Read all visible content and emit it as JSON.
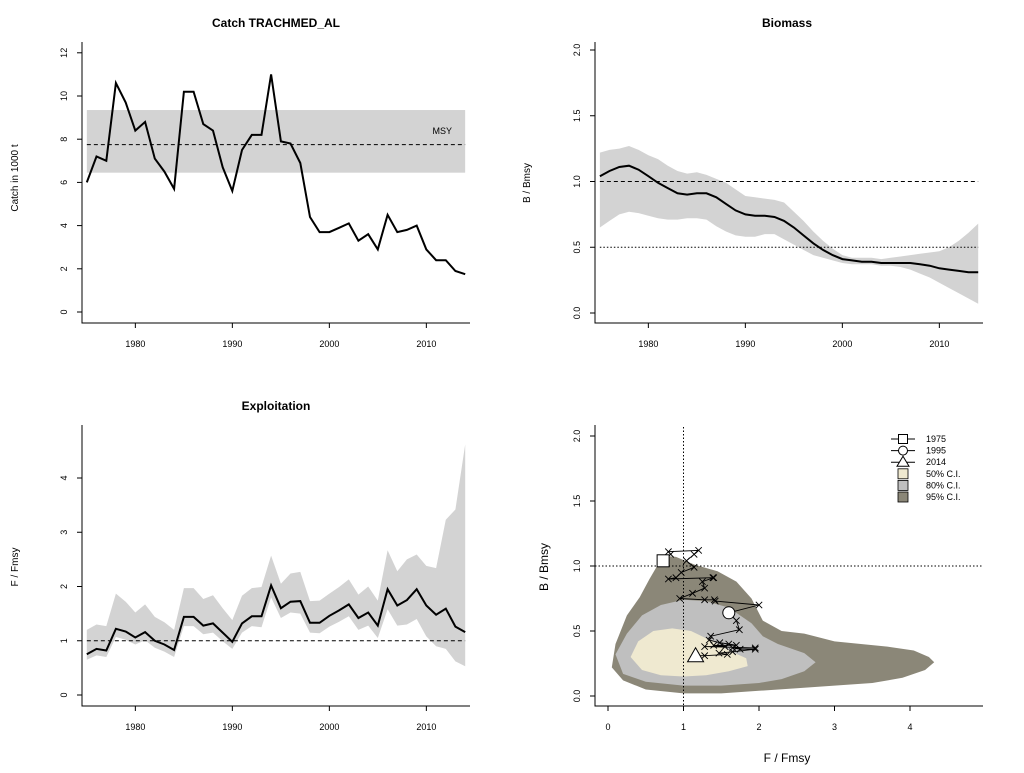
{
  "chart_data": [
    {
      "type": "line",
      "title": "Catch TRACHMED_AL",
      "xlabel": "",
      "ylabel": "Catch in 1000 t",
      "xlim": [
        1974.5,
        2014.5
      ],
      "ylim": [
        0,
        12
      ],
      "x_ticks": [
        1980,
        1990,
        2000,
        2010
      ],
      "y_ticks": [
        0,
        2,
        4,
        6,
        8,
        10,
        12
      ],
      "x": [
        1975,
        1976,
        1977,
        1978,
        1979,
        1980,
        1981,
        1982,
        1983,
        1984,
        1985,
        1986,
        1987,
        1988,
        1989,
        1990,
        1991,
        1992,
        1993,
        1994,
        1995,
        1996,
        1997,
        1998,
        1999,
        2000,
        2001,
        2002,
        2003,
        2004,
        2005,
        2006,
        2007,
        2008,
        2009,
        2010,
        2011,
        2012,
        2013,
        2014
      ],
      "values": [
        6.0,
        7.2,
        7.0,
        10.6,
        9.7,
        8.4,
        8.8,
        7.1,
        6.5,
        5.7,
        10.2,
        10.2,
        8.7,
        8.4,
        6.7,
        5.6,
        7.5,
        8.2,
        8.2,
        11.0,
        7.9,
        7.8,
        6.9,
        4.4,
        3.7,
        3.7,
        3.9,
        4.1,
        3.3,
        3.6,
        2.9,
        4.5,
        3.7,
        3.8,
        4.0,
        2.9,
        2.4,
        2.4,
        1.9,
        1.75
      ],
      "msy": 7.75,
      "msy_band": [
        6.45,
        9.35
      ],
      "annotation": "MSY"
    },
    {
      "type": "area",
      "title": "Biomass",
      "xlabel": "",
      "ylabel": "B / Bmsy",
      "xlim": [
        1974.5,
        2014.5
      ],
      "ylim": [
        0,
        2.0
      ],
      "x_ticks": [
        1980,
        1990,
        2000,
        2010
      ],
      "y_ticks": [
        0.0,
        0.5,
        1.0,
        1.5,
        2.0
      ],
      "x": [
        1975,
        1976,
        1977,
        1978,
        1979,
        1980,
        1981,
        1982,
        1983,
        1984,
        1985,
        1986,
        1987,
        1988,
        1989,
        1990,
        1991,
        1992,
        1993,
        1994,
        1995,
        1996,
        1997,
        1998,
        1999,
        2000,
        2001,
        2002,
        2003,
        2004,
        2005,
        2006,
        2007,
        2008,
        2009,
        2010,
        2011,
        2012,
        2013,
        2014
      ],
      "values": [
        1.04,
        1.08,
        1.11,
        1.12,
        1.09,
        1.04,
        0.99,
        0.95,
        0.91,
        0.9,
        0.91,
        0.91,
        0.88,
        0.83,
        0.78,
        0.75,
        0.74,
        0.74,
        0.73,
        0.7,
        0.65,
        0.59,
        0.53,
        0.48,
        0.44,
        0.41,
        0.4,
        0.39,
        0.39,
        0.38,
        0.38,
        0.38,
        0.38,
        0.37,
        0.36,
        0.34,
        0.33,
        0.32,
        0.31,
        0.31
      ],
      "lower": [
        0.65,
        0.7,
        0.75,
        0.77,
        0.76,
        0.74,
        0.72,
        0.71,
        0.71,
        0.72,
        0.72,
        0.71,
        0.66,
        0.62,
        0.59,
        0.58,
        0.58,
        0.6,
        0.6,
        0.56,
        0.52,
        0.48,
        0.44,
        0.42,
        0.4,
        0.38,
        0.37,
        0.37,
        0.37,
        0.36,
        0.36,
        0.35,
        0.33,
        0.3,
        0.27,
        0.23,
        0.19,
        0.15,
        0.11,
        0.07
      ],
      "upper": [
        1.22,
        1.24,
        1.25,
        1.27,
        1.24,
        1.2,
        1.17,
        1.12,
        1.08,
        1.06,
        1.07,
        1.05,
        1.02,
        0.99,
        0.94,
        0.89,
        0.88,
        0.87,
        0.86,
        0.84,
        0.77,
        0.7,
        0.62,
        0.55,
        0.49,
        0.44,
        0.42,
        0.42,
        0.42,
        0.41,
        0.42,
        0.43,
        0.44,
        0.45,
        0.46,
        0.47,
        0.5,
        0.55,
        0.61,
        0.68
      ],
      "ref_lines": [
        1.0,
        0.5
      ]
    },
    {
      "type": "area",
      "title": "Exploitation",
      "xlabel": "",
      "ylabel": "F / Fmsy",
      "xlim": [
        1974.5,
        2014.5
      ],
      "ylim": [
        0,
        4.8
      ],
      "x_ticks": [
        1980,
        1990,
        2000,
        2010
      ],
      "y_ticks": [
        0,
        1,
        2,
        3,
        4
      ],
      "x": [
        1975,
        1976,
        1977,
        1978,
        1979,
        1980,
        1981,
        1982,
        1983,
        1984,
        1985,
        1986,
        1987,
        1988,
        1989,
        1990,
        1991,
        1992,
        1993,
        1994,
        1995,
        1996,
        1997,
        1998,
        1999,
        2000,
        2001,
        2002,
        2003,
        2004,
        2005,
        2006,
        2007,
        2008,
        2009,
        2010,
        2011,
        2012,
        2013,
        2014
      ],
      "values": [
        0.75,
        0.85,
        0.82,
        1.22,
        1.17,
        1.06,
        1.16,
        1.0,
        0.93,
        0.83,
        1.44,
        1.44,
        1.28,
        1.32,
        1.15,
        0.98,
        1.32,
        1.45,
        1.45,
        2.02,
        1.6,
        1.72,
        1.73,
        1.33,
        1.33,
        1.46,
        1.56,
        1.67,
        1.42,
        1.52,
        1.28,
        1.95,
        1.65,
        1.75,
        1.95,
        1.65,
        1.48,
        1.59,
        1.26,
        1.16
      ],
      "lower": [
        0.65,
        0.73,
        0.7,
        1.07,
        1.02,
        0.93,
        1.01,
        0.87,
        0.8,
        0.7,
        1.27,
        1.27,
        1.12,
        1.15,
        0.99,
        0.85,
        1.15,
        1.27,
        1.25,
        1.8,
        1.42,
        1.52,
        1.5,
        1.15,
        1.14,
        1.26,
        1.35,
        1.45,
        1.2,
        1.28,
        1.05,
        1.58,
        1.28,
        1.3,
        1.4,
        1.08,
        0.9,
        0.85,
        0.62,
        0.53
      ],
      "upper": [
        1.2,
        1.3,
        1.27,
        1.87,
        1.72,
        1.52,
        1.67,
        1.44,
        1.34,
        1.2,
        1.97,
        1.97,
        1.77,
        1.84,
        1.6,
        1.38,
        1.83,
        1.97,
        1.99,
        2.57,
        2.05,
        2.24,
        2.27,
        1.73,
        1.74,
        1.87,
        1.99,
        2.13,
        1.85,
        2.0,
        1.74,
        2.67,
        2.28,
        2.5,
        2.59,
        2.38,
        2.34,
        3.23,
        3.42,
        4.62
      ],
      "ref_line": 1.0
    },
    {
      "type": "scatter",
      "title": "",
      "xlabel": "F / Fmsy",
      "ylabel": "B / Bmsy",
      "xlim": [
        -0.2,
        4.9
      ],
      "ylim": [
        -0.05,
        2.1
      ],
      "x_ticks": [
        0,
        1,
        2,
        3,
        4
      ],
      "y_ticks": [
        0.0,
        0.5,
        1.0,
        1.5,
        2.0
      ],
      "ref_x": 1.0,
      "ref_y": 1.0,
      "trajectory": [
        {
          "f": 0.73,
          "b": 1.04
        },
        {
          "f": 0.83,
          "b": 1.09
        },
        {
          "f": 0.8,
          "b": 1.11
        },
        {
          "f": 1.2,
          "b": 1.12
        },
        {
          "f": 1.14,
          "b": 1.09
        },
        {
          "f": 1.04,
          "b": 1.04
        },
        {
          "f": 1.14,
          "b": 0.99
        },
        {
          "f": 0.97,
          "b": 0.95
        },
        {
          "f": 0.9,
          "b": 0.91
        },
        {
          "f": 0.8,
          "b": 0.9
        },
        {
          "f": 1.39,
          "b": 0.91
        },
        {
          "f": 1.4,
          "b": 0.91
        },
        {
          "f": 1.25,
          "b": 0.88
        },
        {
          "f": 1.28,
          "b": 0.83
        },
        {
          "f": 1.12,
          "b": 0.79
        },
        {
          "f": 0.95,
          "b": 0.75
        },
        {
          "f": 1.28,
          "b": 0.74
        },
        {
          "f": 1.41,
          "b": 0.74
        },
        {
          "f": 1.42,
          "b": 0.73
        },
        {
          "f": 2.0,
          "b": 0.7
        },
        {
          "f": 1.6,
          "b": 0.64
        },
        {
          "f": 1.7,
          "b": 0.58
        },
        {
          "f": 1.74,
          "b": 0.51
        },
        {
          "f": 1.36,
          "b": 0.46
        },
        {
          "f": 1.34,
          "b": 0.43
        },
        {
          "f": 1.48,
          "b": 0.41
        },
        {
          "f": 1.6,
          "b": 0.4
        },
        {
          "f": 1.7,
          "b": 0.39
        },
        {
          "f": 1.4,
          "b": 0.39
        },
        {
          "f": 1.55,
          "b": 0.38
        },
        {
          "f": 1.28,
          "b": 0.38
        },
        {
          "f": 1.95,
          "b": 0.37
        },
        {
          "f": 1.65,
          "b": 0.37
        },
        {
          "f": 1.75,
          "b": 0.36
        },
        {
          "f": 1.95,
          "b": 0.36
        },
        {
          "f": 1.65,
          "b": 0.34
        },
        {
          "f": 1.47,
          "b": 0.33
        },
        {
          "f": 1.58,
          "b": 0.32
        },
        {
          "f": 1.28,
          "b": 0.31
        },
        {
          "f": 1.16,
          "b": 0.31
        }
      ],
      "markers": [
        {
          "year": "1975",
          "shape": "square",
          "f": 0.73,
          "b": 1.04
        },
        {
          "year": "1995",
          "shape": "circle",
          "f": 1.6,
          "b": 0.64
        },
        {
          "year": "2014",
          "shape": "triangle",
          "f": 1.16,
          "b": 0.31
        }
      ],
      "ci_regions": [
        {
          "label": "95% C.I.",
          "color": "#8b8778",
          "points": [
            [
              0.1,
              0.4
            ],
            [
              0.25,
              0.62
            ],
            [
              0.42,
              0.76
            ],
            [
              0.55,
              0.9
            ],
            [
              0.65,
              1.0
            ],
            [
              0.72,
              1.08
            ],
            [
              0.9,
              1.07
            ],
            [
              1.15,
              1.01
            ],
            [
              1.45,
              0.96
            ],
            [
              1.7,
              0.88
            ],
            [
              1.9,
              0.75
            ],
            [
              2.05,
              0.58
            ],
            [
              2.3,
              0.5
            ],
            [
              2.6,
              0.48
            ],
            [
              3.0,
              0.42
            ],
            [
              3.35,
              0.4
            ],
            [
              3.7,
              0.38
            ],
            [
              4.05,
              0.35
            ],
            [
              4.25,
              0.3
            ],
            [
              4.32,
              0.26
            ],
            [
              4.2,
              0.2
            ],
            [
              3.9,
              0.14
            ],
            [
              3.5,
              0.1
            ],
            [
              3.0,
              0.08
            ],
            [
              2.5,
              0.06
            ],
            [
              2.0,
              0.04
            ],
            [
              1.5,
              0.02
            ],
            [
              1.0,
              0.02
            ],
            [
              0.5,
              0.05
            ],
            [
              0.2,
              0.12
            ],
            [
              0.05,
              0.22
            ]
          ]
        },
        {
          "label": "80% C.I.",
          "color": "#bfbfbf",
          "points": [
            [
              0.1,
              0.32
            ],
            [
              0.25,
              0.48
            ],
            [
              0.45,
              0.62
            ],
            [
              0.7,
              0.7
            ],
            [
              1.0,
              0.74
            ],
            [
              1.3,
              0.73
            ],
            [
              1.6,
              0.68
            ],
            [
              1.9,
              0.56
            ],
            [
              2.05,
              0.46
            ],
            [
              2.25,
              0.4
            ],
            [
              2.6,
              0.33
            ],
            [
              2.75,
              0.26
            ],
            [
              2.6,
              0.19
            ],
            [
              2.3,
              0.13
            ],
            [
              2.0,
              0.1
            ],
            [
              1.5,
              0.08
            ],
            [
              1.0,
              0.08
            ],
            [
              0.5,
              0.11
            ],
            [
              0.2,
              0.17
            ]
          ]
        },
        {
          "label": "50% C.I.",
          "color": "#efe9d0",
          "points": [
            [
              0.3,
              0.3
            ],
            [
              0.4,
              0.42
            ],
            [
              0.6,
              0.5
            ],
            [
              0.85,
              0.52
            ],
            [
              1.1,
              0.5
            ],
            [
              1.35,
              0.43
            ],
            [
              1.6,
              0.35
            ],
            [
              1.83,
              0.29
            ],
            [
              1.85,
              0.23
            ],
            [
              1.6,
              0.19
            ],
            [
              1.3,
              0.16
            ],
            [
              1.0,
              0.15
            ],
            [
              0.7,
              0.16
            ],
            [
              0.45,
              0.2
            ]
          ]
        }
      ],
      "legend_position": "top-right",
      "legend": [
        {
          "label": "1975",
          "kind": "square"
        },
        {
          "label": "1995",
          "kind": "circle"
        },
        {
          "label": "2014",
          "kind": "triangle"
        },
        {
          "label": "50% C.I.",
          "kind": "box",
          "color": "#efe9d0"
        },
        {
          "label": "80% C.I.",
          "kind": "box",
          "color": "#bfbfbf"
        },
        {
          "label": "95% C.I.",
          "kind": "box",
          "color": "#8b8778"
        }
      ]
    }
  ]
}
